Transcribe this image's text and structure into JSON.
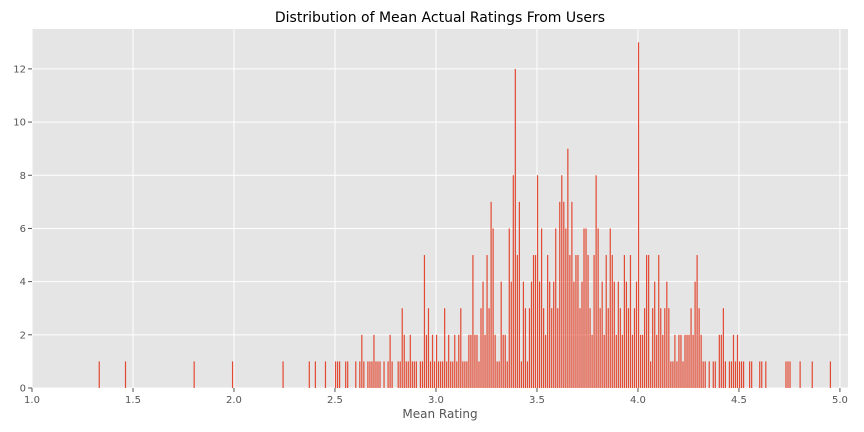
{
  "chart_data": {
    "type": "bar",
    "title": "Distribution of Mean Actual Ratings From Users",
    "xlabel": "Mean Rating",
    "ylabel": "",
    "xlim": [
      1.0,
      5.0
    ],
    "ylim": [
      0,
      13.5
    ],
    "xticks": [
      1.0,
      1.5,
      2.0,
      2.5,
      3.0,
      3.5,
      4.0,
      4.5,
      5.0
    ],
    "xtick_labels": [
      "1.0",
      "1.5",
      "2.0",
      "2.5",
      "3.0",
      "3.5",
      "4.0",
      "4.5",
      "5.0"
    ],
    "yticks": [
      0,
      2,
      4,
      6,
      8,
      10,
      12
    ],
    "ytick_labels": [
      "0",
      "2",
      "4",
      "6",
      "8",
      "10",
      "12"
    ],
    "grid": true,
    "bar_color": "#e24a33",
    "background_color": "#e5e5e5",
    "bin_width": 0.005,
    "bins": [
      [
        1.33,
        1
      ],
      [
        1.46,
        1
      ],
      [
        1.8,
        1
      ],
      [
        1.99,
        1
      ],
      [
        2.24,
        1
      ],
      [
        2.37,
        1
      ],
      [
        2.4,
        1
      ],
      [
        2.45,
        1
      ],
      [
        2.5,
        1
      ],
      [
        2.51,
        1
      ],
      [
        2.52,
        1
      ],
      [
        2.55,
        1
      ],
      [
        2.56,
        1
      ],
      [
        2.6,
        1
      ],
      [
        2.62,
        1
      ],
      [
        2.63,
        2
      ],
      [
        2.64,
        1
      ],
      [
        2.66,
        1
      ],
      [
        2.67,
        1
      ],
      [
        2.68,
        1
      ],
      [
        2.69,
        2
      ],
      [
        2.7,
        1
      ],
      [
        2.71,
        1
      ],
      [
        2.72,
        1
      ],
      [
        2.74,
        1
      ],
      [
        2.76,
        1
      ],
      [
        2.77,
        2
      ],
      [
        2.78,
        1
      ],
      [
        2.81,
        1
      ],
      [
        2.82,
        1
      ],
      [
        2.83,
        3
      ],
      [
        2.84,
        2
      ],
      [
        2.85,
        1
      ],
      [
        2.86,
        1
      ],
      [
        2.87,
        2
      ],
      [
        2.88,
        1
      ],
      [
        2.89,
        1
      ],
      [
        2.9,
        1
      ],
      [
        2.92,
        1
      ],
      [
        2.93,
        1
      ],
      [
        2.94,
        5
      ],
      [
        2.95,
        2
      ],
      [
        2.96,
        3
      ],
      [
        2.97,
        1
      ],
      [
        2.98,
        2
      ],
      [
        2.99,
        1
      ],
      [
        3.0,
        2
      ],
      [
        3.01,
        1
      ],
      [
        3.02,
        1
      ],
      [
        3.03,
        1
      ],
      [
        3.04,
        3
      ],
      [
        3.05,
        1
      ],
      [
        3.06,
        2
      ],
      [
        3.07,
        1
      ],
      [
        3.08,
        1
      ],
      [
        3.09,
        2
      ],
      [
        3.1,
        1
      ],
      [
        3.11,
        2
      ],
      [
        3.12,
        3
      ],
      [
        3.13,
        1
      ],
      [
        3.14,
        1
      ],
      [
        3.15,
        1
      ],
      [
        3.16,
        2
      ],
      [
        3.17,
        2
      ],
      [
        3.18,
        5
      ],
      [
        3.19,
        2
      ],
      [
        3.2,
        2
      ],
      [
        3.21,
        1
      ],
      [
        3.22,
        3
      ],
      [
        3.23,
        4
      ],
      [
        3.24,
        2
      ],
      [
        3.25,
        5
      ],
      [
        3.26,
        3
      ],
      [
        3.27,
        7
      ],
      [
        3.28,
        6
      ],
      [
        3.29,
        2
      ],
      [
        3.3,
        1
      ],
      [
        3.31,
        1
      ],
      [
        3.32,
        4
      ],
      [
        3.33,
        2
      ],
      [
        3.34,
        2
      ],
      [
        3.35,
        1
      ],
      [
        3.36,
        6
      ],
      [
        3.37,
        4
      ],
      [
        3.38,
        8
      ],
      [
        3.39,
        12
      ],
      [
        3.4,
        5
      ],
      [
        3.41,
        7
      ],
      [
        3.42,
        1
      ],
      [
        3.43,
        4
      ],
      [
        3.44,
        3
      ],
      [
        3.45,
        1
      ],
      [
        3.46,
        3
      ],
      [
        3.47,
        4
      ],
      [
        3.48,
        5
      ],
      [
        3.49,
        5
      ],
      [
        3.5,
        8
      ],
      [
        3.51,
        4
      ],
      [
        3.52,
        6
      ],
      [
        3.53,
        3
      ],
      [
        3.54,
        2
      ],
      [
        3.55,
        5
      ],
      [
        3.56,
        4
      ],
      [
        3.57,
        3
      ],
      [
        3.58,
        4
      ],
      [
        3.59,
        6
      ],
      [
        3.6,
        3
      ],
      [
        3.61,
        7
      ],
      [
        3.62,
        8
      ],
      [
        3.63,
        7
      ],
      [
        3.64,
        6
      ],
      [
        3.65,
        9
      ],
      [
        3.66,
        5
      ],
      [
        3.67,
        7
      ],
      [
        3.68,
        4
      ],
      [
        3.69,
        5
      ],
      [
        3.7,
        5
      ],
      [
        3.71,
        3
      ],
      [
        3.72,
        4
      ],
      [
        3.73,
        6
      ],
      [
        3.74,
        6
      ],
      [
        3.75,
        5
      ],
      [
        3.76,
        3
      ],
      [
        3.77,
        2
      ],
      [
        3.78,
        5
      ],
      [
        3.79,
        8
      ],
      [
        3.8,
        6
      ],
      [
        3.81,
        3
      ],
      [
        3.82,
        4
      ],
      [
        3.83,
        2
      ],
      [
        3.84,
        5
      ],
      [
        3.85,
        3
      ],
      [
        3.86,
        6
      ],
      [
        3.87,
        5
      ],
      [
        3.88,
        4
      ],
      [
        3.89,
        2
      ],
      [
        3.9,
        4
      ],
      [
        3.91,
        3
      ],
      [
        3.92,
        2
      ],
      [
        3.93,
        5
      ],
      [
        3.94,
        4
      ],
      [
        3.95,
        3
      ],
      [
        3.96,
        5
      ],
      [
        3.97,
        2
      ],
      [
        3.98,
        3
      ],
      [
        3.99,
        4
      ],
      [
        4.0,
        13
      ],
      [
        4.01,
        2
      ],
      [
        4.02,
        2
      ],
      [
        4.03,
        3
      ],
      [
        4.04,
        5
      ],
      [
        4.05,
        5
      ],
      [
        4.06,
        1
      ],
      [
        4.07,
        3
      ],
      [
        4.08,
        4
      ],
      [
        4.09,
        2
      ],
      [
        4.1,
        5
      ],
      [
        4.11,
        3
      ],
      [
        4.12,
        2
      ],
      [
        4.13,
        3
      ],
      [
        4.14,
        4
      ],
      [
        4.15,
        3
      ],
      [
        4.16,
        1
      ],
      [
        4.17,
        1
      ],
      [
        4.18,
        2
      ],
      [
        4.19,
        1
      ],
      [
        4.2,
        2
      ],
      [
        4.21,
        2
      ],
      [
        4.22,
        1
      ],
      [
        4.23,
        2
      ],
      [
        4.24,
        2
      ],
      [
        4.25,
        2
      ],
      [
        4.26,
        3
      ],
      [
        4.27,
        2
      ],
      [
        4.28,
        4
      ],
      [
        4.29,
        5
      ],
      [
        4.3,
        3
      ],
      [
        4.31,
        2
      ],
      [
        4.32,
        1
      ],
      [
        4.33,
        1
      ],
      [
        4.35,
        1
      ],
      [
        4.37,
        1
      ],
      [
        4.38,
        1
      ],
      [
        4.4,
        2
      ],
      [
        4.41,
        2
      ],
      [
        4.42,
        3
      ],
      [
        4.43,
        1
      ],
      [
        4.45,
        1
      ],
      [
        4.46,
        1
      ],
      [
        4.47,
        2
      ],
      [
        4.48,
        1
      ],
      [
        4.49,
        2
      ],
      [
        4.5,
        1
      ],
      [
        4.51,
        1
      ],
      [
        4.52,
        1
      ],
      [
        4.55,
        1
      ],
      [
        4.56,
        1
      ],
      [
        4.6,
        1
      ],
      [
        4.61,
        1
      ],
      [
        4.63,
        1
      ],
      [
        4.73,
        1
      ],
      [
        4.74,
        1
      ],
      [
        4.75,
        1
      ],
      [
        4.8,
        1
      ],
      [
        4.86,
        1
      ],
      [
        4.95,
        1
      ]
    ]
  }
}
